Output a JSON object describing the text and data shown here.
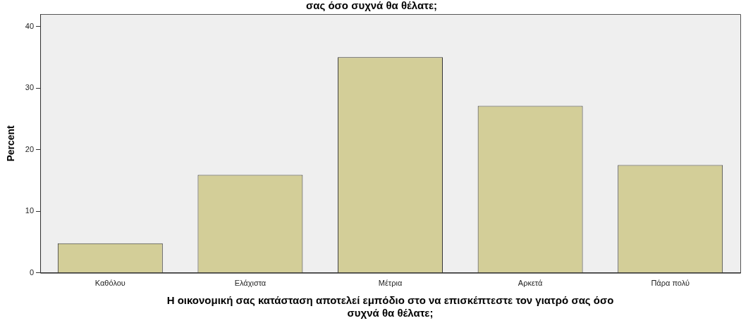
{
  "chart_data": {
    "type": "bar",
    "title": "σας όσο συχνά θα θέλατε;",
    "xlabel": "Η οικονομική σας κατάσταση αποτελεί εμπόδιο στο να επισκέπτεστε τον γιατρό σας όσο συχνά θα θέλατε;",
    "ylabel": "Percent",
    "categories": [
      "Καθόλου",
      "Ελάχιστα",
      "Μέτρια",
      "Αρκετά",
      "Πάρα πολύ"
    ],
    "values": [
      4.8,
      15.9,
      35.0,
      27.1,
      17.5
    ],
    "color": "#d3ce98",
    "ylim": [
      0,
      42
    ],
    "yticks": [
      0,
      10,
      20,
      30,
      40
    ],
    "grid": false,
    "legend": false
  }
}
